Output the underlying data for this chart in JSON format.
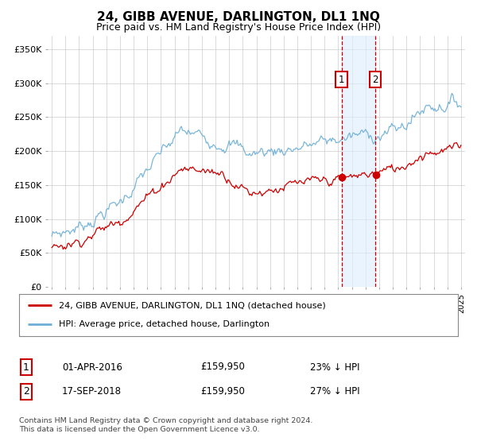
{
  "title": "24, GIBB AVENUE, DARLINGTON, DL1 1NQ",
  "subtitle": "Price paid vs. HM Land Registry's House Price Index (HPI)",
  "ylabel_ticks": [
    "£0",
    "£50K",
    "£100K",
    "£150K",
    "£200K",
    "£250K",
    "£300K",
    "£350K"
  ],
  "ylim": [
    0,
    370000
  ],
  "yticks": [
    0,
    50000,
    100000,
    150000,
    200000,
    250000,
    300000,
    350000
  ],
  "hpi_color": "#6baed6",
  "price_color": "#cc0000",
  "vline_color": "#cc0000",
  "vband_color": "#ddeeff",
  "marker1_year": 2016.25,
  "marker2_year": 2018.71,
  "sale1_price": 159950,
  "sale2_price": 159950,
  "legend_label1": "24, GIBB AVENUE, DARLINGTON, DL1 1NQ (detached house)",
  "legend_label2": "HPI: Average price, detached house, Darlington",
  "table_row1": [
    "1",
    "01-APR-2016",
    "£159,950",
    "23% ↓ HPI"
  ],
  "table_row2": [
    "2",
    "17-SEP-2018",
    "£159,950",
    "27% ↓ HPI"
  ],
  "footer": "Contains HM Land Registry data © Crown copyright and database right 2024.\nThis data is licensed under the Open Government Licence v3.0.",
  "background_color": "#ffffff",
  "grid_color": "#cccccc"
}
